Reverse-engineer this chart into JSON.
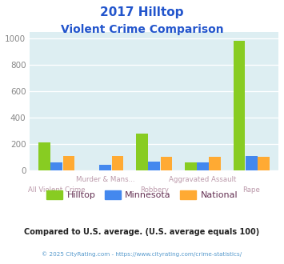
{
  "title_line1": "2017 Hilltop",
  "title_line2": "Violent Crime Comparison",
  "categories": [
    "All Violent Crime",
    "Murder & Mans...",
    "Robbery",
    "Aggravated Assault",
    "Rape"
  ],
  "hilltop": [
    210,
    0,
    278,
    58,
    980
  ],
  "minnesota": [
    62,
    42,
    68,
    58,
    108
  ],
  "national": [
    108,
    108,
    105,
    105,
    104
  ],
  "hilltop_color": "#88cc22",
  "minnesota_color": "#4488ee",
  "national_color": "#ffaa33",
  "plot_bg": "#ddeef2",
  "title_color": "#2255cc",
  "xticklabel_color": "#bb99aa",
  "ytick_color": "#888888",
  "ylabel_values": [
    0,
    200,
    400,
    600,
    800,
    1000
  ],
  "ylim": [
    0,
    1050
  ],
  "footer_text": "Compared to U.S. average. (U.S. average equals 100)",
  "copyright_text": "© 2025 CityRating.com - https://www.cityrating.com/crime-statistics/",
  "legend_labels": [
    "Hilltop",
    "Minnesota",
    "National"
  ],
  "legend_label_color": "#663355"
}
